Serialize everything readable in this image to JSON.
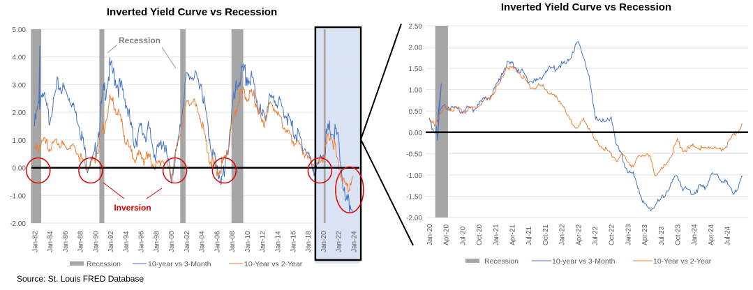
{
  "source": "Source: St. Louis FRED Database",
  "colors": {
    "blue": "#4472C4",
    "orange": "#ED7D31",
    "recession": "#A6A6A6",
    "highlight": "#DAE3F3",
    "annotation": "#E00000"
  },
  "chart_data": [
    {
      "type": "line",
      "title": "Inverted Yield Curve vs Recession",
      "ylim": [
        -2,
        5
      ],
      "yticks": [
        "5.00",
        "4.00",
        "3.00",
        "2.00",
        "1.00",
        "0.00",
        "-1.00",
        "-2.00"
      ],
      "xlim": [
        1981.6,
        2024.8
      ],
      "xticks": [
        "Jan-82",
        "Jan-84",
        "Jan-86",
        "Jan-88",
        "Jan-90",
        "Jan-92",
        "Jan-94",
        "Jan-96",
        "Jan-98",
        "Jan-00",
        "Jan-02",
        "Jan-04",
        "Jan-06",
        "Jan-08",
        "Jan-10",
        "Jan-12",
        "Jan-14",
        "Jan-16",
        "Jan-18",
        "Jan-20",
        "Jan-22",
        "Jan-24"
      ],
      "x": [
        1982,
        1983,
        1984,
        1985,
        1986,
        1987,
        1988,
        1989,
        1990,
        1991,
        1992,
        1993,
        1994,
        1995,
        1996,
        1997,
        1998,
        1999,
        2000,
        2001,
        2002,
        2003,
        2004,
        2005,
        2006,
        2007,
        2008,
        2009,
        2010,
        2011,
        2012,
        2013,
        2014,
        2015,
        2016,
        2017,
        2018,
        2019,
        2020,
        2021,
        2022,
        2023,
        2024
      ],
      "series": [
        {
          "name": "10-year vs 3-Month",
          "values": [
            1.5,
            2.8,
            1.7,
            3.0,
            2.8,
            2.3,
            1.5,
            0.0,
            0.5,
            2.5,
            3.6,
            3.0,
            2.5,
            1.0,
            1.3,
            1.3,
            0.5,
            1.0,
            -0.4,
            1.0,
            3.3,
            3.3,
            3.0,
            1.2,
            -0.1,
            -0.4,
            2.0,
            3.3,
            3.3,
            2.9,
            1.7,
            2.5,
            2.4,
            2.0,
            1.4,
            1.0,
            0.5,
            -0.2,
            0.6,
            1.4,
            1.0,
            -1.4,
            -1.3
          ]
        },
        {
          "name": "10-Year vs 2-Year",
          "values": [
            0.5,
            1.0,
            0.7,
            1.0,
            0.7,
            0.8,
            0.4,
            0.0,
            0.4,
            1.3,
            2.5,
            2.0,
            1.0,
            0.4,
            0.4,
            0.3,
            0.1,
            0.3,
            -0.3,
            1.0,
            2.3,
            2.4,
            1.7,
            0.4,
            -0.1,
            0.2,
            1.5,
            2.6,
            2.7,
            2.5,
            1.5,
            2.3,
            2.0,
            1.4,
            1.0,
            0.8,
            0.3,
            0.1,
            0.4,
            1.3,
            0.2,
            -0.8,
            -0.3
          ]
        }
      ],
      "recessions": [
        [
          1981.55,
          1982.9
        ],
        [
          1990.55,
          1991.2
        ],
        [
          2001.2,
          2001.9
        ],
        [
          2007.95,
          2009.5
        ],
        [
          2020.1,
          2020.35
        ]
      ],
      "highlight_range": [
        2019.0,
        2024.8
      ],
      "annotations": {
        "recession_label": "Recession",
        "inversion_label": "Inversion",
        "inversion_points": [
          1982.5,
          1989.4,
          2000.5,
          2007.0,
          2019.6,
          2023.5
        ]
      },
      "legend": [
        "Recession",
        "10-year vs 3-Month",
        "10-Year vs 2-Year"
      ],
      "legend_position": "bottom"
    },
    {
      "type": "line",
      "title": "Inverted Yield Curve vs Recession",
      "ylim": [
        -2,
        2.5
      ],
      "yticks": [
        "2.50",
        "2.00",
        "1.50",
        "1.00",
        "0.50",
        "0.00",
        "-0.50",
        "-1.00",
        "-1.50",
        "-2.00"
      ],
      "xticks": [
        "Jan-20",
        "Apr-20",
        "Jul-20",
        "Oct-20",
        "Jan-21",
        "Apr-21",
        "Jul-21",
        "Oct-21",
        "Jan-22",
        "Apr-22",
        "Jul-22",
        "Oct-22",
        "Jan-23",
        "Apr-23",
        "Jul-23",
        "Oct-23",
        "Jan-24",
        "Apr-24",
        "Jul-24"
      ],
      "x_start": "Jan-20",
      "x_step": "month",
      "series": [
        {
          "name": "10-year vs 3-Month",
          "values": [
            0.3,
            0.0,
            0.5,
            0.6,
            0.6,
            0.55,
            0.5,
            0.55,
            0.55,
            0.7,
            0.75,
            0.85,
            1.0,
            1.35,
            1.6,
            1.6,
            1.5,
            1.4,
            1.2,
            1.2,
            1.2,
            1.45,
            1.5,
            1.5,
            1.6,
            1.6,
            1.9,
            2.1,
            1.8,
            1.3,
            0.4,
            0.3,
            0.2,
            0.4,
            -0.3,
            -0.6,
            -0.9,
            -1.0,
            -1.3,
            -1.7,
            -1.8,
            -1.7,
            -1.6,
            -1.4,
            -1.2,
            -1.0,
            -1.3,
            -1.4,
            -1.4,
            -1.3,
            -1.3,
            -1.0,
            -1.0,
            -1.1,
            -1.2,
            -1.4,
            -1.3,
            -1.0
          ]
        },
        {
          "name": "10-Year vs 2-Year",
          "values": [
            0.25,
            0.2,
            0.45,
            0.55,
            0.55,
            0.55,
            0.5,
            0.55,
            0.55,
            0.65,
            0.75,
            0.8,
            1.0,
            1.2,
            1.55,
            1.5,
            1.45,
            1.3,
            1.1,
            1.05,
            1.1,
            1.05,
            0.9,
            0.8,
            0.7,
            0.4,
            0.2,
            0.1,
            0.3,
            0.1,
            -0.2,
            -0.3,
            -0.4,
            -0.5,
            -0.65,
            -0.55,
            -0.65,
            -0.85,
            -0.55,
            -0.5,
            -0.6,
            -1.0,
            -0.9,
            -0.75,
            -0.5,
            -0.2,
            -0.4,
            -0.4,
            -0.3,
            -0.35,
            -0.4,
            -0.3,
            -0.4,
            -0.4,
            -0.3,
            -0.1,
            0.05,
            0.2
          ]
        }
      ],
      "recessions": [
        [
          1.1,
          3.4
        ]
      ],
      "legend": [
        "Recession",
        "10-year vs 3-Month",
        "10-Year vs 2-Year"
      ],
      "legend_position": "bottom"
    }
  ]
}
